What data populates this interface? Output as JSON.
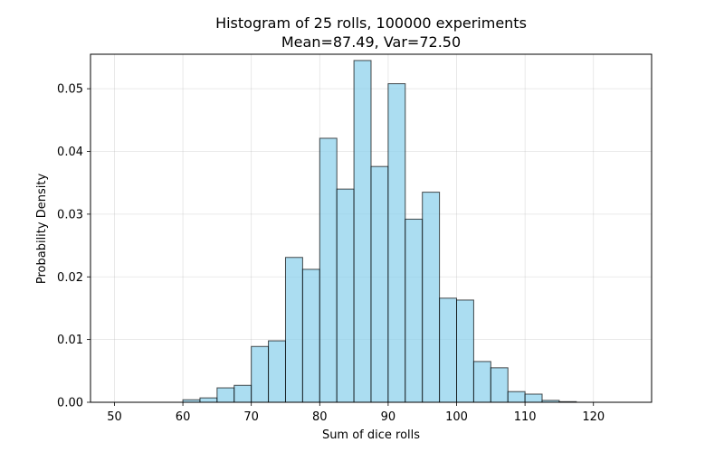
{
  "chart_data": {
    "type": "bar",
    "title": "Histogram of 25 rolls, 100000 experiments",
    "subtitle": "Mean=87.49, Var=72.50",
    "xlabel": "Sum of dice rolls",
    "ylabel": "Probability Density",
    "xlim": [
      46.5,
      128.5
    ],
    "ylim": [
      0,
      0.0555
    ],
    "xticks": [
      50,
      60,
      70,
      80,
      90,
      100,
      110,
      120
    ],
    "yticks": [
      0.0,
      0.01,
      0.02,
      0.03,
      0.04,
      0.05
    ],
    "ytick_labels": [
      "0.00",
      "0.01",
      "0.02",
      "0.03",
      "0.04",
      "0.05"
    ],
    "grid": true,
    "bar_color": "#87ceeb",
    "bar_edge_color": "#000000",
    "bin_edges": [
      50,
      52.5,
      55,
      57.5,
      60,
      62.5,
      65,
      67.5,
      70,
      72.5,
      75,
      77.5,
      80,
      82.5,
      85,
      87.5,
      90,
      92.5,
      95,
      97.5,
      100,
      102.5,
      105,
      107.5,
      110,
      112.5,
      115,
      117.5,
      120,
      122.5,
      125
    ],
    "values": [
      0.0,
      0.0,
      0.0,
      0.0,
      0.0004,
      0.0007,
      0.0023,
      0.0027,
      0.0089,
      0.0098,
      0.0231,
      0.0212,
      0.0421,
      0.034,
      0.0545,
      0.0376,
      0.0508,
      0.0292,
      0.0335,
      0.0166,
      0.0163,
      0.0065,
      0.0055,
      0.0017,
      0.0013,
      0.0003,
      0.0001,
      0.0,
      0.0,
      0.0
    ]
  }
}
